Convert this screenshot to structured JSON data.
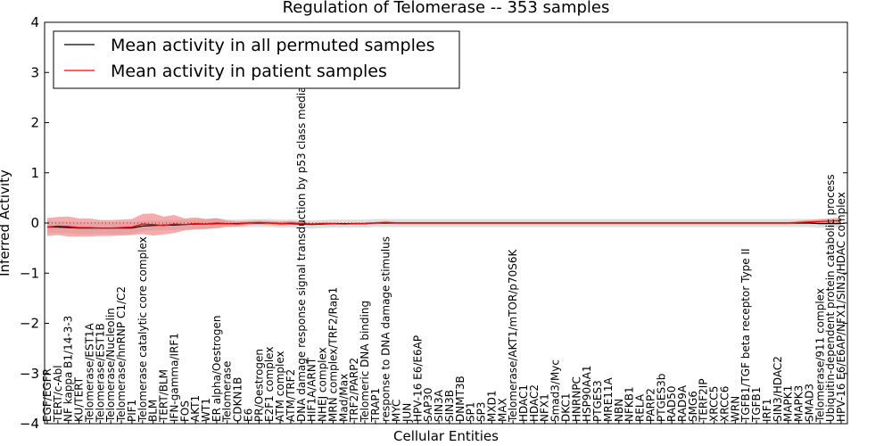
{
  "chart_data": {
    "type": "line",
    "title": "Regulation of Telomerase -- 353 samples",
    "xlabel": "Cellular Entities",
    "ylabel": "Inferred Activity",
    "ylim": [
      -4,
      4
    ],
    "yticks": [
      "−4",
      "−3",
      "−2",
      "−1",
      "0",
      "1",
      "2",
      "3",
      "4"
    ],
    "legend": {
      "placement": "top-left",
      "entries": [
        {
          "label": "Mean activity in all permuted samples",
          "color": "#000000"
        },
        {
          "label": "Mean activity in patient samples",
          "color": "#ff0000"
        }
      ]
    },
    "categories": [
      "EGF/EGFR",
      "TERT/c-Abl",
      "NF kappa B1/14-3-3",
      "KU/TERT",
      "Telomerase/EST1A",
      "Telomerase/EST1B",
      "Telomerase/Nucleolin",
      "Telomerase/hnRNP C1/C2",
      "PIF1",
      "Telomerase catalytic core complex",
      "BLM",
      "TERT/BLM",
      "IFN-gamma/IRF1",
      "FOS",
      "AKT1",
      "WT1",
      "ER alpha/Oestrogen",
      "Telomerase",
      "CDKN1B",
      "E6",
      "PR/Oestrogen",
      "E2F1 complex",
      "ATM complex",
      "ATM/TRF2",
      "DNA damage response signal transduction by p53 class mediator",
      "HIF1A/ARNT",
      "NHEJ complex",
      "MRN complex/TRF2/Rap1",
      "Mad/Max",
      "TRF2/PARP2",
      "Telomeric DNA binding",
      "TRAP1",
      "response to DNA damage stimulus",
      "MYC",
      "JUN",
      "HPV-16 E6/E6AP",
      "SAP30",
      "SIN3A",
      "SIN3B",
      "DNMT3B",
      "SP1",
      "SP3",
      "MXD1",
      "MAX",
      "Telomerase/AKT1/mTOR/p70S6K",
      "HDAC1",
      "HDAC2",
      "NFX1",
      "Smad3/Myc",
      "DKC1",
      "HNRNPC",
      "HSP90AA1",
      "PTGES3",
      "MRE11A",
      "NBN",
      "NFKB1",
      "RELA",
      "PARP2",
      "PTGES3b",
      "RAD50",
      "RAD9A",
      "SMG6",
      "TERF2IP",
      "XRCC5",
      "XRCC6",
      "WRN",
      "TGFB1/TGF beta receptor Type II",
      "TGFB1",
      "IRF1",
      "SIN3/HDAC2",
      "MAPK1",
      "MAPK3",
      "SMAD3",
      "Telomerase/911 complex",
      "Ubiquitin-dependent protein catabolic process",
      "HPV-16 E6/E6AP/NFX1/SIN3/HDAC complex"
    ],
    "series": [
      {
        "name": "Mean activity in all permuted samples",
        "color": "#000000",
        "values": [
          -0.08,
          -0.08,
          -0.09,
          -0.1,
          -0.1,
          -0.1,
          -0.1,
          -0.1,
          -0.1,
          -0.06,
          -0.05,
          -0.04,
          -0.04,
          -0.03,
          -0.02,
          -0.02,
          -0.01,
          -0.01,
          -0.01,
          0.0,
          0.0,
          0.0,
          -0.01,
          -0.01,
          -0.02,
          -0.03,
          -0.02,
          -0.01,
          -0.01,
          -0.01,
          -0.01,
          0.0,
          0.0,
          0.0,
          0.0,
          0.0,
          0.0,
          0.0,
          0.0,
          0.0,
          0.0,
          0.0,
          0.0,
          0.0,
          0.0,
          0.0,
          0.0,
          0.0,
          0.0,
          0.0,
          0.0,
          0.0,
          0.0,
          0.0,
          0.0,
          0.0,
          0.0,
          0.0,
          0.0,
          0.0,
          0.0,
          0.0,
          0.0,
          0.0,
          0.0,
          0.0,
          0.0,
          0.0,
          0.0,
          0.0,
          0.0,
          0.0,
          0.0,
          -0.01,
          -0.01,
          -0.01
        ],
        "band": [
          0.12,
          0.12,
          0.12,
          0.12,
          0.12,
          0.12,
          0.12,
          0.12,
          0.12,
          0.1,
          0.1,
          0.1,
          0.1,
          0.1,
          0.1,
          0.1,
          0.1,
          0.08,
          0.08,
          0.08,
          0.08,
          0.08,
          0.08,
          0.08,
          0.08,
          0.08,
          0.08,
          0.08,
          0.08,
          0.08,
          0.08,
          0.08,
          0.08,
          0.08,
          0.08,
          0.08,
          0.08,
          0.08,
          0.08,
          0.08,
          0.08,
          0.08,
          0.08,
          0.08,
          0.08,
          0.08,
          0.08,
          0.08,
          0.08,
          0.08,
          0.08,
          0.08,
          0.08,
          0.08,
          0.08,
          0.08,
          0.08,
          0.08,
          0.08,
          0.08,
          0.08,
          0.08,
          0.08,
          0.08,
          0.08,
          0.08,
          0.08,
          0.08,
          0.08,
          0.08,
          0.08,
          0.08,
          0.08,
          0.08,
          0.08,
          0.08
        ]
      },
      {
        "name": "Mean activity in patient samples",
        "color": "#ff0000",
        "values": [
          -0.08,
          -0.06,
          -0.07,
          -0.09,
          -0.09,
          -0.1,
          -0.1,
          -0.09,
          -0.08,
          -0.02,
          -0.03,
          -0.05,
          -0.02,
          -0.03,
          -0.01,
          -0.02,
          0.0,
          -0.01,
          -0.02,
          0.0,
          0.01,
          0.0,
          -0.01,
          0.0,
          -0.01,
          -0.02,
          -0.01,
          -0.01,
          -0.02,
          -0.01,
          -0.01,
          0.0,
          0.01,
          0.0,
          0.0,
          0.0,
          0.0,
          0.0,
          0.0,
          0.0,
          0.0,
          0.0,
          0.0,
          0.0,
          0.0,
          0.0,
          0.0,
          0.0,
          0.0,
          0.0,
          0.0,
          0.0,
          0.0,
          0.0,
          0.0,
          0.0,
          0.0,
          0.0,
          0.0,
          0.0,
          0.0,
          0.0,
          0.0,
          0.0,
          0.0,
          0.0,
          0.0,
          0.0,
          0.0,
          0.0,
          0.0,
          0.01,
          0.02,
          0.03,
          0.04,
          0.05
        ],
        "band": [
          0.18,
          0.18,
          0.2,
          0.18,
          0.18,
          0.16,
          0.16,
          0.16,
          0.16,
          0.2,
          0.22,
          0.18,
          0.18,
          0.12,
          0.12,
          0.1,
          0.1,
          0.06,
          0.05,
          0.04,
          0.04,
          0.04,
          0.04,
          0.04,
          0.03,
          0.02,
          0.02,
          0.02,
          0.02,
          0.02,
          0.02,
          0.02,
          0.03,
          0.02,
          0.02,
          0.02,
          0.02,
          0.02,
          0.02,
          0.02,
          0.02,
          0.02,
          0.02,
          0.02,
          0.02,
          0.02,
          0.02,
          0.02,
          0.02,
          0.02,
          0.02,
          0.02,
          0.02,
          0.02,
          0.02,
          0.02,
          0.02,
          0.02,
          0.02,
          0.02,
          0.02,
          0.02,
          0.02,
          0.02,
          0.02,
          0.02,
          0.02,
          0.02,
          0.02,
          0.02,
          0.02,
          0.03,
          0.04,
          0.05,
          0.05,
          0.06
        ]
      }
    ]
  }
}
